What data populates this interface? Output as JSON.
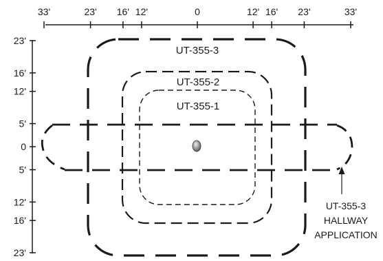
{
  "x_axis": {
    "ticks": [
      "33'",
      "23'",
      "16'",
      "12'",
      "0",
      "12'",
      "16'",
      "23'",
      "33'"
    ],
    "values": [
      -33,
      -23,
      -16,
      -12,
      0,
      12,
      16,
      23,
      33
    ]
  },
  "y_axis": {
    "ticks": [
      "23'",
      "16'",
      "12'",
      "5'",
      "0",
      "5'",
      "12'",
      "16'",
      "23'"
    ],
    "values": [
      23,
      16,
      12,
      5,
      0,
      -5,
      -12,
      -16,
      -23
    ]
  },
  "zones": [
    {
      "id": "ut-355-1",
      "label": "UT-355-1"
    },
    {
      "id": "ut-355-2",
      "label": "UT-355-2"
    },
    {
      "id": "ut-355-3",
      "label": "UT-355-3"
    }
  ],
  "hallway": {
    "lines": [
      "UT-355-3",
      "HALLWAY",
      "APPLICATION"
    ]
  },
  "colors": {
    "line": "#1a1a1a",
    "sensor_light": "#e6e6e6",
    "sensor_dark": "#555555"
  }
}
